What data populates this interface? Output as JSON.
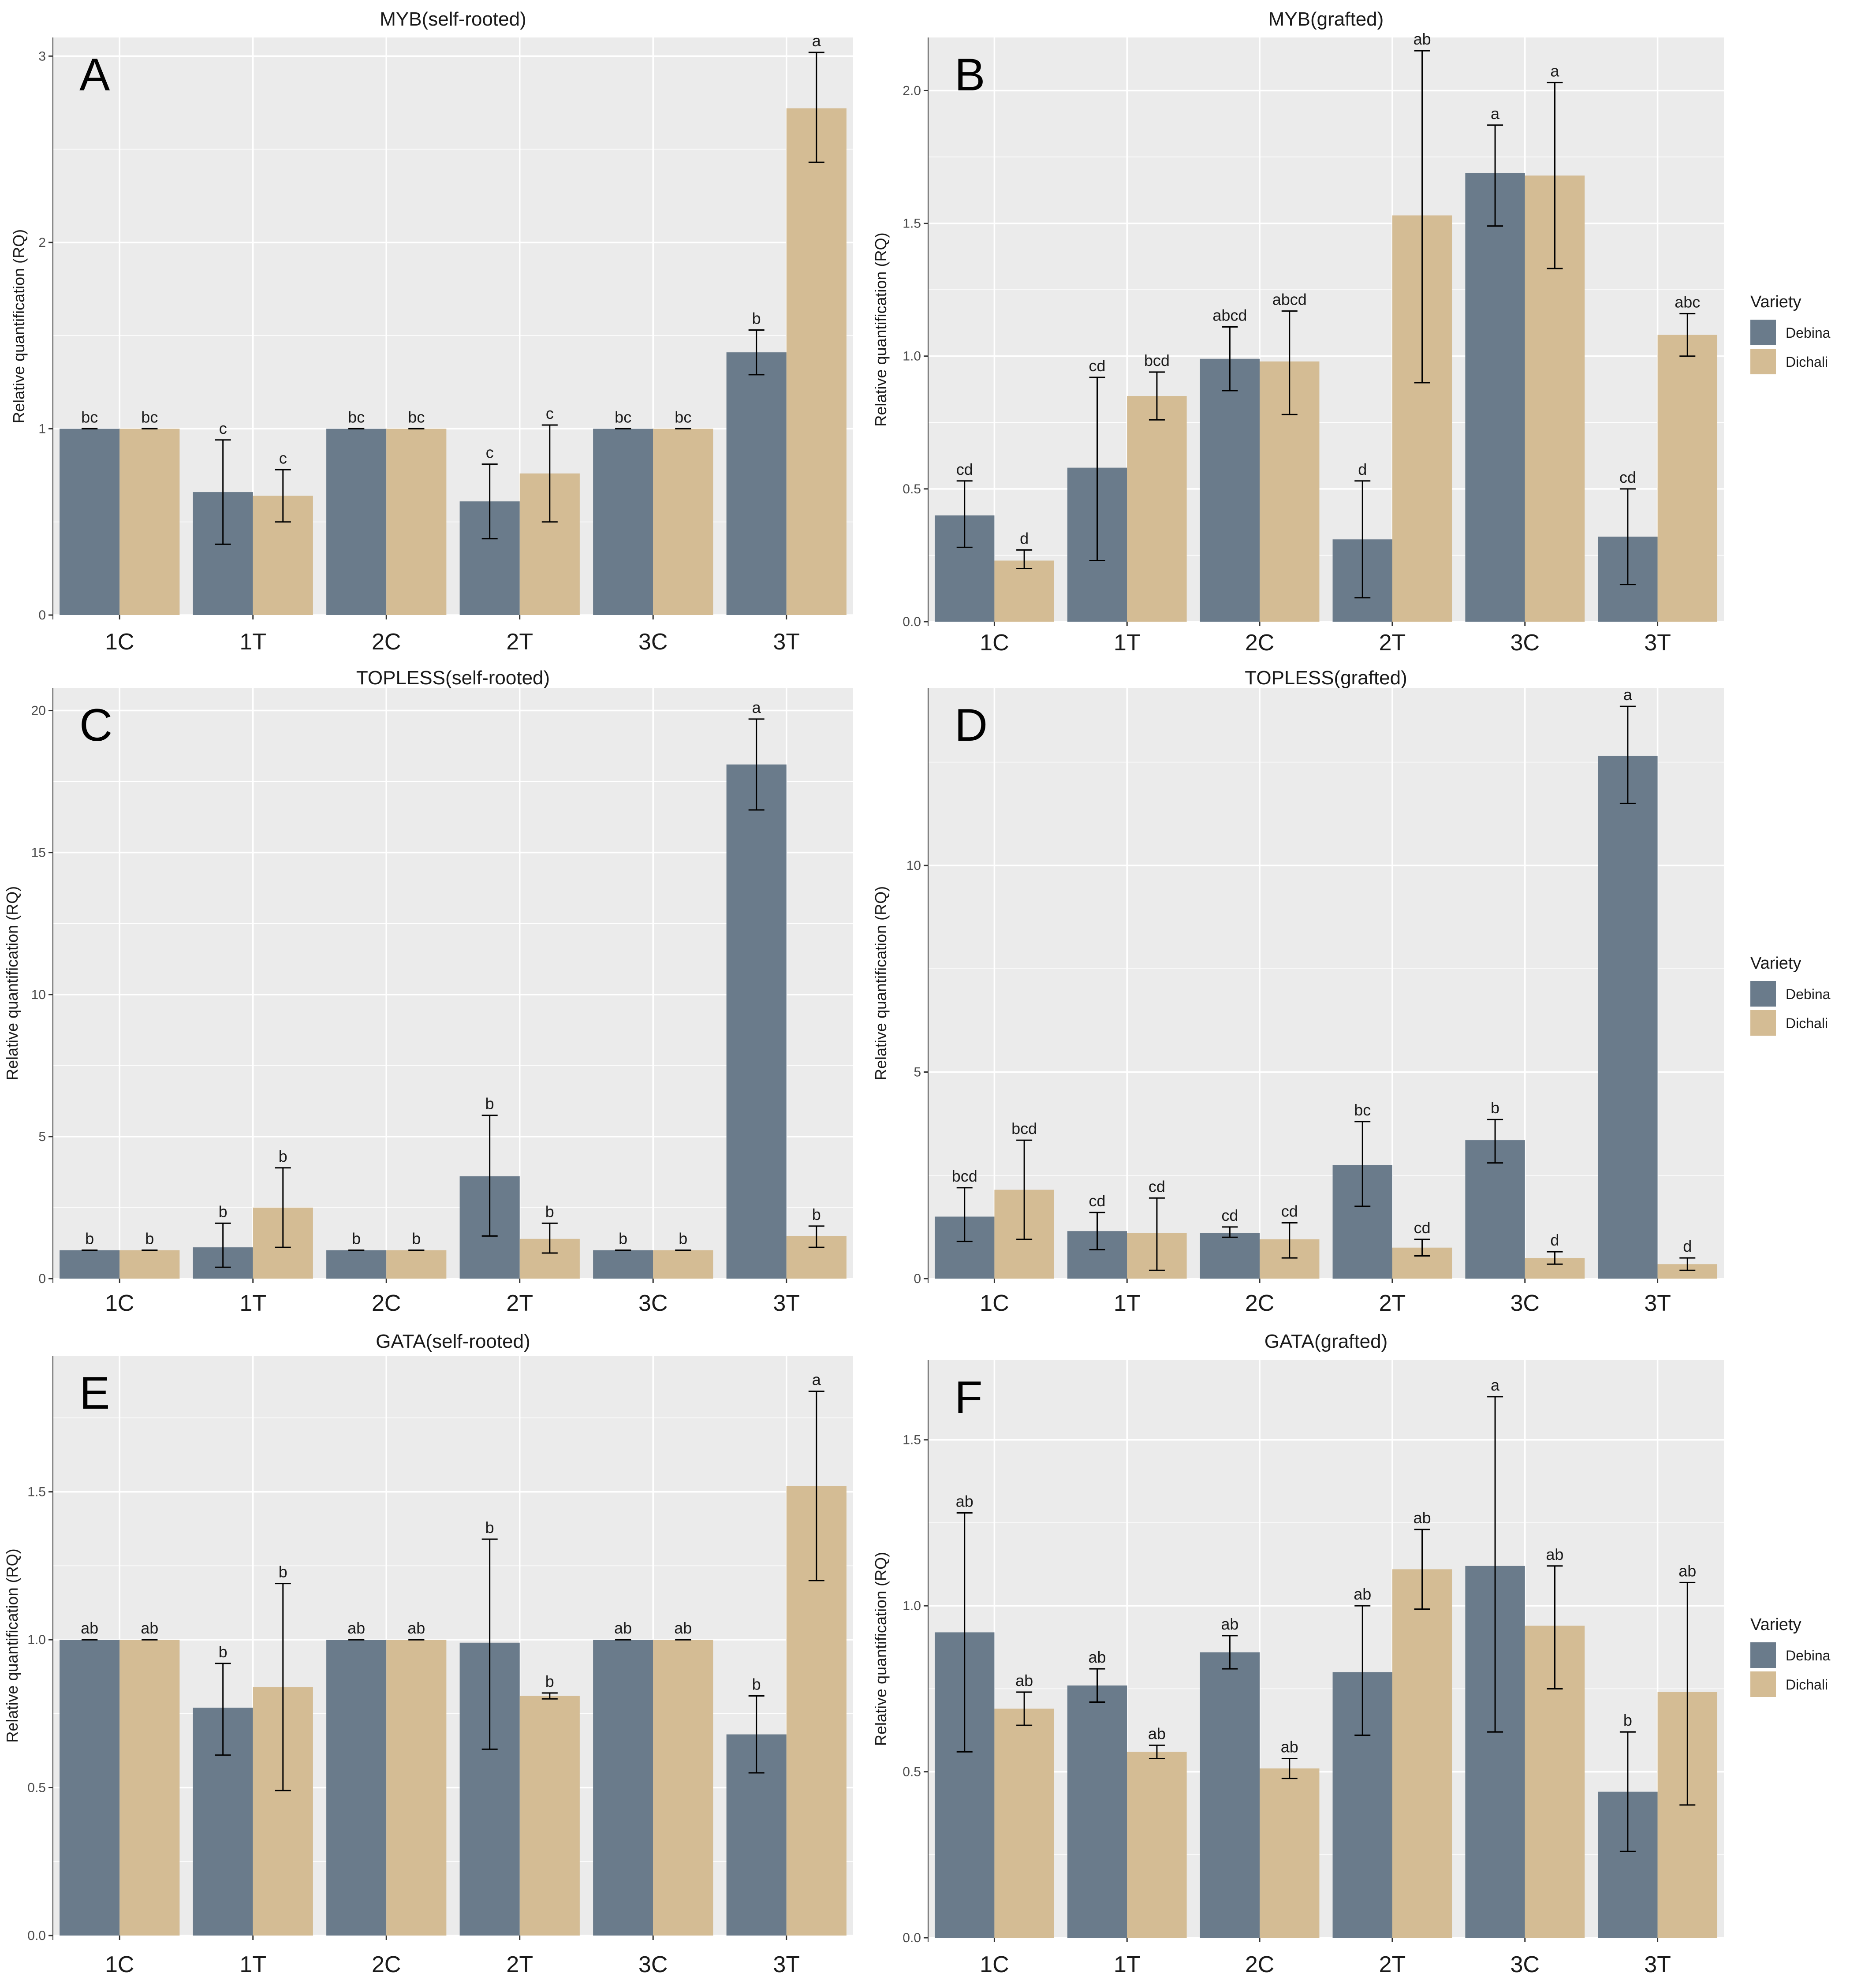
{
  "colors": {
    "Debina": "#6a7b8b",
    "Dichali": "#d4bc94",
    "panel_bg": "#ebebeb",
    "grid": "#ffffff"
  },
  "chart_data": [
    {
      "id": "A",
      "letter": "A",
      "type": "bar",
      "title": "MYB(self-rooted)",
      "ylabel": "Relative quantification (RQ)",
      "ylim": [
        0,
        3.1
      ],
      "yticks": [
        0,
        1,
        2,
        3
      ],
      "ytick_labels": [
        "0",
        "1",
        "2",
        "3"
      ],
      "categories": [
        "1C",
        "1T",
        "2C",
        "2T",
        "3C",
        "3T"
      ],
      "series": [
        {
          "name": "Debina",
          "values": [
            1.0,
            0.66,
            1.0,
            0.61,
            1.0,
            1.41
          ],
          "err_low": [
            1.0,
            0.38,
            1.0,
            0.41,
            1.0,
            1.29
          ],
          "err_high": [
            1.0,
            0.94,
            1.0,
            0.81,
            1.0,
            1.53
          ],
          "labels": [
            "bc",
            "c",
            "bc",
            "c",
            "bc",
            "b"
          ]
        },
        {
          "name": "Dichali",
          "values": [
            1.0,
            0.64,
            1.0,
            0.76,
            1.0,
            2.72
          ],
          "err_low": [
            1.0,
            0.5,
            1.0,
            0.5,
            1.0,
            2.43
          ],
          "err_high": [
            1.0,
            0.78,
            1.0,
            1.02,
            1.0,
            3.02
          ],
          "labels": [
            "bc",
            "c",
            "bc",
            "c",
            "bc",
            "a"
          ]
        }
      ]
    },
    {
      "id": "B",
      "letter": "B",
      "type": "bar",
      "title": "MYB(grafted)",
      "ylabel": "Relative quantification (RQ)",
      "ylim": [
        0,
        2.2
      ],
      "yticks": [
        0,
        0.5,
        1,
        1.5,
        2
      ],
      "ytick_labels": [
        "0.0",
        "0.5",
        "1.0",
        "1.5",
        "2.0"
      ],
      "categories": [
        "1C",
        "1T",
        "2C",
        "2T",
        "3C",
        "3T"
      ],
      "series": [
        {
          "name": "Debina",
          "values": [
            0.4,
            0.58,
            0.99,
            0.31,
            1.69,
            0.32
          ],
          "err_low": [
            0.28,
            0.23,
            0.87,
            0.09,
            1.49,
            0.14
          ],
          "err_high": [
            0.53,
            0.92,
            1.11,
            0.53,
            1.87,
            0.5
          ],
          "labels": [
            "cd",
            "cd",
            "abcd",
            "d",
            "a",
            "cd"
          ]
        },
        {
          "name": "Dichali",
          "values": [
            0.23,
            0.85,
            0.98,
            1.53,
            1.68,
            1.08
          ],
          "err_low": [
            0.2,
            0.76,
            0.78,
            0.9,
            1.33,
            1.0
          ],
          "err_high": [
            0.27,
            0.94,
            1.17,
            2.15,
            2.03,
            1.16
          ],
          "labels": [
            "d",
            "bcd",
            "abcd",
            "ab",
            "a",
            "abc"
          ]
        }
      ]
    },
    {
      "id": "C",
      "letter": "C",
      "type": "bar",
      "title": "TOPLESS(self-rooted)",
      "ylabel": "Relative quantification (RQ)",
      "ylim": [
        0,
        20.8
      ],
      "yticks": [
        0,
        5,
        10,
        15,
        20
      ],
      "ytick_labels": [
        "0",
        "5",
        "10",
        "15",
        "20"
      ],
      "categories": [
        "1C",
        "1T",
        "2C",
        "2T",
        "3C",
        "3T"
      ],
      "series": [
        {
          "name": "Debina",
          "values": [
            1.0,
            1.1,
            1.0,
            3.6,
            1.0,
            18.1
          ],
          "err_low": [
            1.0,
            0.4,
            1.0,
            1.5,
            1.0,
            16.5
          ],
          "err_high": [
            1.0,
            1.95,
            1.0,
            5.75,
            1.0,
            19.7
          ],
          "labels": [
            "b",
            "b",
            "b",
            "b",
            "b",
            "a"
          ]
        },
        {
          "name": "Dichali",
          "values": [
            1.0,
            2.5,
            1.0,
            1.4,
            1.0,
            1.5
          ],
          "err_low": [
            1.0,
            1.1,
            1.0,
            0.9,
            1.0,
            1.1
          ],
          "err_high": [
            1.0,
            3.9,
            1.0,
            1.95,
            1.0,
            1.85
          ],
          "labels": [
            "b",
            "b",
            "b",
            "b",
            "b",
            "b"
          ]
        }
      ]
    },
    {
      "id": "D",
      "letter": "D",
      "type": "bar",
      "title": "TOPLESS(grafted)",
      "ylabel": "Relative quantification (RQ)",
      "ylim": [
        0,
        14.3
      ],
      "yticks": [
        0,
        5,
        10
      ],
      "ytick_labels": [
        "0",
        "5",
        "10"
      ],
      "categories": [
        "1C",
        "1T",
        "2C",
        "2T",
        "3C",
        "3T"
      ],
      "series": [
        {
          "name": "Debina",
          "values": [
            1.5,
            1.15,
            1.1,
            2.75,
            3.35,
            12.65
          ],
          "err_low": [
            0.9,
            0.7,
            1.0,
            1.75,
            2.8,
            11.5
          ],
          "err_high": [
            2.2,
            1.6,
            1.25,
            3.8,
            3.85,
            13.85
          ],
          "labels": [
            "bcd",
            "cd",
            "cd",
            "bc",
            "b",
            "a"
          ]
        },
        {
          "name": "Dichali",
          "values": [
            2.15,
            1.1,
            0.95,
            0.75,
            0.5,
            0.35
          ],
          "err_low": [
            0.95,
            0.2,
            0.5,
            0.55,
            0.35,
            0.2
          ],
          "err_high": [
            3.35,
            1.95,
            1.35,
            0.95,
            0.65,
            0.5
          ],
          "labels": [
            "bcd",
            "cd",
            "cd",
            "cd",
            "d",
            "d"
          ]
        }
      ]
    },
    {
      "id": "E",
      "letter": "E",
      "type": "bar",
      "title": "GATA(self-rooted)",
      "ylabel": "Relative quantification (RQ)",
      "ylim": [
        0,
        1.96
      ],
      "yticks": [
        0,
        0.5,
        1,
        1.5
      ],
      "ytick_labels": [
        "0.0",
        "0.5",
        "1.0",
        "1.5"
      ],
      "categories": [
        "1C",
        "1T",
        "2C",
        "2T",
        "3C",
        "3T"
      ],
      "series": [
        {
          "name": "Debina",
          "values": [
            1.0,
            0.77,
            1.0,
            0.99,
            1.0,
            0.68
          ],
          "err_low": [
            1.0,
            0.61,
            1.0,
            0.63,
            1.0,
            0.55
          ],
          "err_high": [
            1.0,
            0.92,
            1.0,
            1.34,
            1.0,
            0.81
          ],
          "labels": [
            "ab",
            "b",
            "ab",
            "b",
            "ab",
            "b"
          ]
        },
        {
          "name": "Dichali",
          "values": [
            1.0,
            0.84,
            1.0,
            0.81,
            1.0,
            1.52
          ],
          "err_low": [
            1.0,
            0.49,
            1.0,
            0.8,
            1.0,
            1.2
          ],
          "err_high": [
            1.0,
            1.19,
            1.0,
            0.82,
            1.0,
            1.84
          ],
          "labels": [
            "ab",
            "b",
            "ab",
            "b",
            "ab",
            "a"
          ]
        }
      ]
    },
    {
      "id": "F",
      "letter": "F",
      "type": "bar",
      "title": "GATA(grafted)",
      "ylabel": "Relative quantification (RQ)",
      "ylim": [
        0,
        1.74
      ],
      "yticks": [
        0,
        0.5,
        1,
        1.5
      ],
      "ytick_labels": [
        "0.0",
        "0.5",
        "1.0",
        "1.5"
      ],
      "categories": [
        "1C",
        "1T",
        "2C",
        "2T",
        "3C",
        "3T"
      ],
      "series": [
        {
          "name": "Debina",
          "values": [
            0.92,
            0.76,
            0.86,
            0.8,
            1.12,
            0.44
          ],
          "err_low": [
            0.56,
            0.71,
            0.81,
            0.61,
            0.62,
            0.26
          ],
          "err_high": [
            1.28,
            0.81,
            0.91,
            1.0,
            1.63,
            0.62
          ],
          "labels": [
            "ab",
            "ab",
            "ab",
            "ab",
            "a",
            "b"
          ]
        },
        {
          "name": "Dichali",
          "values": [
            0.69,
            0.56,
            0.51,
            1.11,
            0.94,
            0.74
          ],
          "err_low": [
            0.64,
            0.54,
            0.48,
            0.99,
            0.75,
            0.4
          ],
          "err_high": [
            0.74,
            0.58,
            0.54,
            1.23,
            1.12,
            1.07
          ],
          "labels": [
            "ab",
            "ab",
            "ab",
            "ab",
            "ab",
            "ab"
          ]
        }
      ]
    }
  ],
  "legends": [
    {
      "panel": "B",
      "title": "Variety",
      "items": [
        "Debina",
        "Dichali"
      ]
    },
    {
      "panel": "D",
      "title": "Variety",
      "items": [
        "Debina",
        "Dichali"
      ]
    },
    {
      "panel": "F",
      "title": "Variety",
      "items": [
        "Debina",
        "Dichali"
      ]
    }
  ]
}
